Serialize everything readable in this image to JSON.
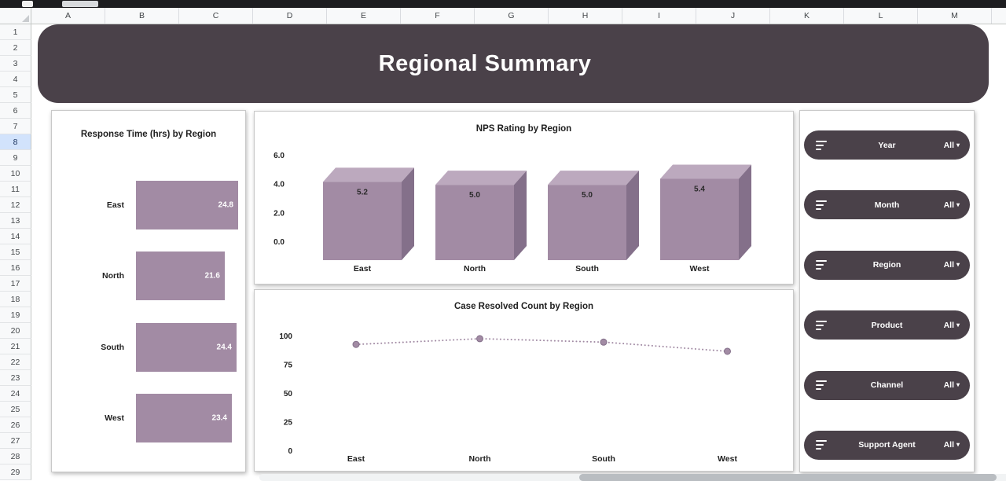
{
  "sheet": {
    "columns": [
      "A",
      "B",
      "C",
      "D",
      "E",
      "F",
      "G",
      "H",
      "I",
      "J",
      "K",
      "L",
      "M"
    ],
    "row_count": 29,
    "selected_row": 8
  },
  "dashboard": {
    "title": "Regional Summary"
  },
  "chart_data": [
    {
      "type": "bar",
      "orientation": "horizontal",
      "title": "Response Time (hrs) by Region",
      "categories": [
        "East",
        "North",
        "South",
        "West"
      ],
      "values": [
        24.8,
        21.6,
        24.4,
        23.4
      ],
      "xlim": [
        0,
        26
      ],
      "value_label_position": "inside-end",
      "grid": false
    },
    {
      "type": "bar",
      "style": "3d",
      "title": "NPS Rating by Region",
      "categories": [
        "East",
        "North",
        "South",
        "West"
      ],
      "values": [
        5.2,
        5.0,
        5.0,
        5.4
      ],
      "ylim": [
        0,
        6
      ],
      "yticks": [
        "6.0",
        "4.0",
        "2.0",
        "0.0"
      ],
      "value_label_position": "top",
      "grid": false
    },
    {
      "type": "line",
      "style": "dotted",
      "title": "Case Resolved Count by Region",
      "categories": [
        "East",
        "North",
        "South",
        "West"
      ],
      "values": [
        93,
        98,
        95,
        87
      ],
      "ylim": [
        0,
        100
      ],
      "yticks": [
        "100",
        "75",
        "50",
        "25",
        "0"
      ],
      "grid": false
    }
  ],
  "slicers": [
    {
      "label": "Year",
      "value": "All"
    },
    {
      "label": "Month",
      "value": "All"
    },
    {
      "label": "Region",
      "value": "All"
    },
    {
      "label": "Product",
      "value": "All"
    },
    {
      "label": "Channel",
      "value": "All"
    },
    {
      "label": "Support Agent",
      "value": "All"
    }
  ],
  "icons": {
    "slicer_left": "filter-icon",
    "slicer_right": "chevron-down-icon"
  },
  "colors": {
    "band": "#4a4149",
    "bar_front": "#a28ba4",
    "bar_top": "#bca9be",
    "bar_side": "#84708a",
    "line": "#a28ba4",
    "marker": "#a28ba4",
    "slicer_bg": "#4a4149",
    "row_selected_bg": "#d2e3fc"
  }
}
